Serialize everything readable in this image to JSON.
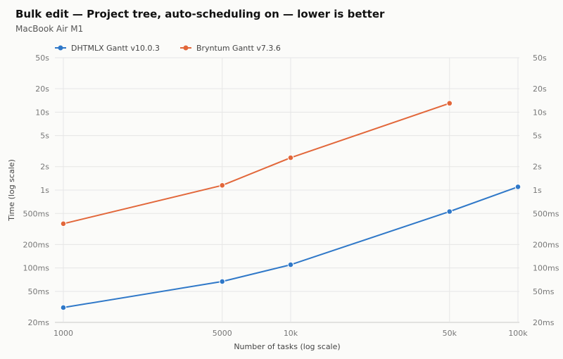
{
  "chart_data": {
    "type": "line",
    "title": "Bulk edit — Project tree, auto-scheduling on — lower is better",
    "subtitle": "MacBook Air M1",
    "xlabel": "Number of tasks (log scale)",
    "ylabel": "Time (log scale)",
    "x_scale": "log",
    "y_scale": "log",
    "y_unit": "ms",
    "xlim": [
      1000,
      100000
    ],
    "ylim": [
      20,
      50000
    ],
    "x_ticks": [
      1000,
      5000,
      10000,
      50000,
      100000
    ],
    "x_tick_labels": [
      "1000",
      "5000",
      "10k",
      "50k",
      "100k"
    ],
    "y_ticks": [
      20,
      50,
      100,
      200,
      500,
      1000,
      2000,
      5000,
      10000,
      20000,
      50000
    ],
    "y_tick_labels": [
      "20ms",
      "50ms",
      "100ms",
      "200ms",
      "500ms",
      "1s",
      "2s",
      "5s",
      "10s",
      "20s",
      "50s"
    ],
    "grid": true,
    "legend_position": "top-left",
    "series": [
      {
        "name": "DHTMLX Gantt v10.0.3",
        "color": "#2f78c8",
        "x": [
          1000,
          5000,
          10000,
          50000,
          100000
        ],
        "values": [
          31,
          67,
          110,
          530,
          1100
        ]
      },
      {
        "name": "Bryntum Gantt v7.3.6",
        "color": "#e2673a",
        "x": [
          1000,
          5000,
          10000,
          50000
        ],
        "values": [
          370,
          1150,
          2600,
          13000
        ]
      }
    ]
  }
}
